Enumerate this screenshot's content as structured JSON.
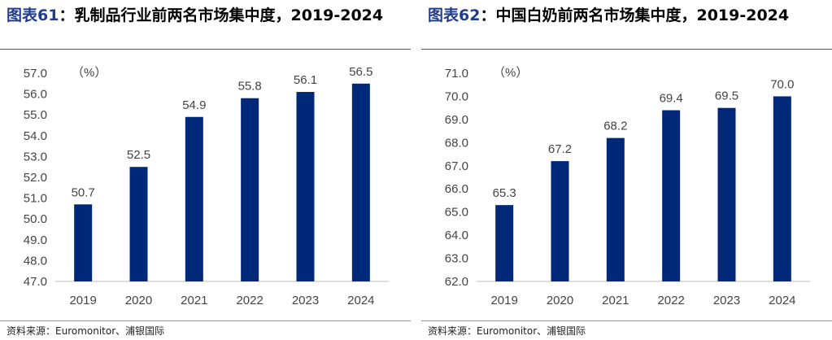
{
  "charts": [
    {
      "title_prefix": "图表",
      "title_number": "61",
      "title_text": "：乳制品行业前两名市场集中度，2019-2024",
      "source": "资料来源：Euromonitor、浦银国际"
    },
    {
      "title_prefix": "图表",
      "title_number": "62",
      "title_text": "：中国白奶前两名市场集中度，2019-2024",
      "source": "资料来源：Euromonitor、浦银国际"
    }
  ],
  "chart_data": [
    {
      "type": "bar",
      "unit_label": "（%）",
      "categories": [
        "2019",
        "2020",
        "2021",
        "2022",
        "2023",
        "2024"
      ],
      "values": [
        50.7,
        52.5,
        54.9,
        55.8,
        56.1,
        56.5
      ],
      "ylim": [
        47.0,
        57.0
      ],
      "yticks": [
        "47.0",
        "48.0",
        "49.0",
        "50.0",
        "51.0",
        "52.0",
        "53.0",
        "54.0",
        "55.0",
        "56.0",
        "57.0"
      ],
      "data_labels": [
        "50.7",
        "52.5",
        "54.9",
        "55.8",
        "56.1",
        "56.5"
      ],
      "bar_color": "#002878",
      "grid": false
    },
    {
      "type": "bar",
      "unit_label": "（%）",
      "categories": [
        "2019",
        "2020",
        "2021",
        "2022",
        "2023",
        "2024"
      ],
      "values": [
        65.3,
        67.2,
        68.2,
        69.4,
        69.5,
        70.0
      ],
      "ylim": [
        62.0,
        71.0
      ],
      "yticks": [
        "62.0",
        "63.0",
        "64.0",
        "65.0",
        "66.0",
        "67.0",
        "68.0",
        "69.0",
        "70.0",
        "71.0"
      ],
      "data_labels": [
        "65.3",
        "67.2",
        "68.2",
        "69.4",
        "69.5",
        "70.0"
      ],
      "bar_color": "#002878",
      "grid": false
    }
  ]
}
